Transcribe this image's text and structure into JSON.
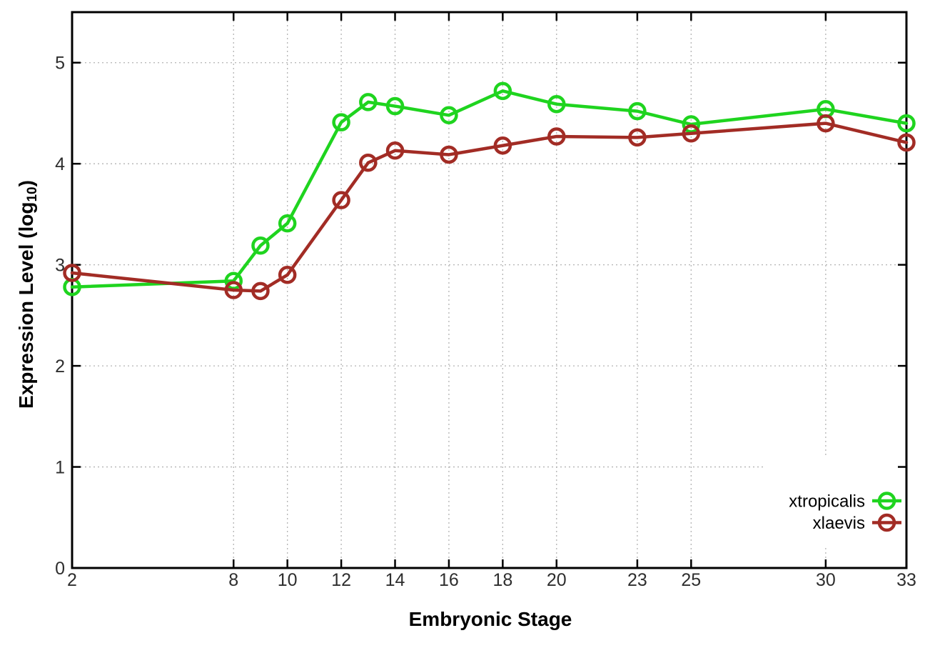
{
  "chart_data": {
    "type": "line",
    "title": "",
    "xlabel": "Embryonic Stage",
    "ylabel": "Expression Level (log10)",
    "ylabel_parts": {
      "prefix": "Expression Level (log",
      "sub": "10",
      "suffix": ")"
    },
    "x": [
      2,
      8,
      9,
      10,
      12,
      13,
      14,
      16,
      18,
      20,
      23,
      25,
      30,
      33
    ],
    "series": [
      {
        "name": "xtropicalis",
        "color": "#1fd41f",
        "values": [
          2.78,
          2.84,
          3.19,
          3.41,
          4.41,
          4.61,
          4.57,
          4.48,
          4.72,
          4.59,
          4.52,
          4.39,
          4.54,
          4.4
        ]
      },
      {
        "name": "xlaevis",
        "color": "#a22c25",
        "values": [
          2.92,
          2.75,
          2.74,
          2.9,
          3.64,
          4.01,
          4.13,
          4.09,
          4.18,
          4.27,
          4.26,
          4.3,
          4.4,
          4.21
        ]
      }
    ],
    "xlim": [
      2,
      33
    ],
    "ylim": [
      0,
      5.5
    ],
    "x_ticks": [
      2,
      8,
      10,
      12,
      14,
      16,
      18,
      20,
      23,
      25,
      30,
      33
    ],
    "y_ticks": [
      0,
      1,
      2,
      3,
      4,
      5
    ],
    "grid": true,
    "grid_color": "#b3b3b3",
    "border_color": "#000000",
    "legend_position": "bottom-right",
    "marker": "open-circle"
  }
}
